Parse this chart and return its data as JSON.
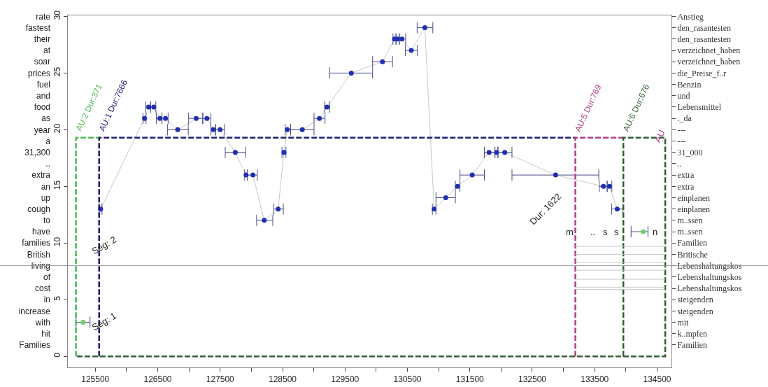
{
  "chart_data": {
    "type": "scatter",
    "xlim": [
      125060,
      134730
    ],
    "xticks": [
      125500,
      {
        "value": 126000,
        "label": null
      },
      126500,
      {
        "value": 127000,
        "label": null
      },
      127500,
      {
        "value": 128000,
        "label": null
      },
      128500,
      {
        "value": 129000,
        "label": null
      },
      129500,
      {
        "value": 130000,
        "label": null
      },
      130500,
      {
        "value": 131000,
        "label": null
      },
      131500,
      {
        "value": 132000,
        "label": null
      },
      132500,
      {
        "value": 133000,
        "label": null
      },
      133500,
      {
        "value": 134000,
        "label": null
      },
      134500
    ],
    "ylim": [
      -1,
      30.1
    ],
    "yticks": [
      0,
      5,
      10,
      15,
      20,
      25,
      30
    ],
    "y2_categories": [
      "Anstieg",
      "den_rasantesten",
      "den_rasantesten",
      "verzeichnet_haben",
      "verzeichnet_haben",
      "die_Preise_f..r",
      "Benzin",
      "und",
      "Lebensmittel",
      "._da",
      "---",
      "---",
      "31_000",
      "..",
      "extra",
      "extra",
      "einplanen",
      "einplanen",
      "m..ssen",
      "m..ssen",
      "Familien",
      "Britische",
      "Lebenshaltungskos",
      "Lebenshaltungskos",
      "Lebenshaltungskos",
      "steigenden",
      "steigenden",
      "mit",
      "k..mpfen",
      "Familien"
    ],
    "y_categories": [
      "rate",
      "fastest",
      "their",
      "at",
      "soar",
      "prices",
      "fuel",
      "and",
      "food",
      "as",
      "year",
      "a",
      "31,300",
      "..",
      "extra",
      "an",
      "up",
      "cough",
      "to",
      "have",
      "families",
      "British",
      "living",
      "of",
      "cost",
      "in",
      "increase",
      "with",
      "hit",
      "Families"
    ],
    "legend": false,
    "series": [
      {
        "type": "line",
        "color": "#c8c8c8",
        "line_style": "solid",
        "x": [
          125585,
          126288,
          126354,
          126436,
          126534,
          126624,
          126820,
          127116,
          127288,
          127390,
          127499,
          127743,
          127914,
          128025,
          128207,
          128429,
          128522,
          128576,
          128816,
          129090,
          129211,
          129601,
          130100,
          130293,
          130343,
          130412,
          130562,
          130779,
          130928,
          131114,
          131302,
          131538,
          131808,
          131926,
          132059,
          132874,
          133640,
          133737,
          133861
        ],
        "values": [
          13,
          21,
          22,
          22,
          21,
          21,
          20,
          21,
          21,
          20,
          20,
          18,
          16,
          16,
          12,
          13,
          18,
          20,
          20,
          21,
          22,
          25,
          26,
          28,
          28,
          28,
          27,
          29,
          13,
          14,
          15,
          16,
          18,
          18,
          18,
          16,
          15,
          15,
          13
        ]
      },
      {
        "color": "#1f2fb0",
        "marker": "circle",
        "x": [
          125585,
          126288,
          126354,
          126436,
          126534,
          126624,
          126820,
          127116,
          127288,
          127390,
          127499,
          127743,
          127914,
          128025,
          128207,
          128429,
          128522,
          128576,
          128816,
          129090,
          129211,
          129601,
          130100,
          130293,
          130343,
          130412,
          130562,
          130779,
          130928,
          131114,
          131302,
          131538,
          131808,
          131926,
          132059,
          132874,
          133640,
          133737,
          133861
        ],
        "values": [
          13,
          21,
          22,
          22,
          21,
          21,
          20,
          21,
          21,
          20,
          20,
          18,
          16,
          16,
          12,
          13,
          18,
          20,
          20,
          21,
          22,
          25,
          26,
          28,
          28,
          28,
          27,
          29,
          13,
          14,
          15,
          16,
          18,
          18,
          18,
          16,
          15,
          15,
          13
        ],
        "xerrors": [
          [
            125562,
            125607
          ],
          [
            126263,
            126313
          ],
          [
            126309,
            126387
          ],
          [
            126387,
            126470
          ],
          [
            126477,
            126568
          ],
          [
            126568,
            126666
          ],
          [
            126658,
            126989
          ],
          [
            126995,
            127221
          ],
          [
            127221,
            127352
          ],
          [
            127352,
            127428
          ],
          [
            127428,
            127570
          ],
          [
            127581,
            127908
          ],
          [
            127893,
            127934
          ],
          [
            127934,
            128096
          ],
          [
            128084,
            128343
          ],
          [
            128358,
            128512
          ],
          [
            128490,
            128554
          ],
          [
            128543,
            128629
          ],
          [
            128629,
            129004
          ],
          [
            129004,
            129180
          ],
          [
            129173,
            129255
          ],
          [
            129255,
            129942
          ],
          [
            129942,
            130261
          ],
          [
            130269,
            130317
          ],
          [
            130317,
            130370
          ],
          [
            130370,
            130471
          ],
          [
            130468,
            130659
          ],
          [
            130655,
            130907
          ],
          [
            130900,
            130957
          ],
          [
            130957,
            131268
          ],
          [
            131268,
            131342
          ],
          [
            131342,
            131733
          ],
          [
            131733,
            131902
          ],
          [
            131902,
            131950
          ],
          [
            131950,
            132175
          ],
          [
            132175,
            133565
          ],
          [
            133572,
            133700
          ],
          [
            133700,
            133775
          ],
          [
            133771,
            133951
          ]
        ]
      },
      {
        "color": "#6fcf6f",
        "marker": "circle",
        "x": [
          125306,
          134278
        ],
        "values": [
          3,
          11
        ],
        "xerrors": [
          [
            125190,
            125416
          ],
          [
            134083,
            134353
          ]
        ]
      },
      {
        "type": "line",
        "name": "AU:2 Dur:371",
        "color": "#4cbb4c",
        "line_style": "dashed",
        "x": [
          125190,
          125190,
          125561
        ],
        "values": [
          0,
          19.3,
          19.3
        ]
      },
      {
        "type": "line",
        "name": "AU:1 Dur:7666",
        "color": "#1c1c70",
        "line_style": "dashed",
        "x": [
          125561,
          125561,
          133190
        ],
        "values": [
          0,
          19.3,
          19.3
        ]
      },
      {
        "type": "line",
        "name": "AU:5 Dur:769",
        "color": "#b03d86",
        "line_style": "dashed",
        "x": [
          133190,
          133190,
          133959
        ],
        "values": [
          0,
          19.3,
          19.3
        ]
      },
      {
        "type": "line",
        "name": "AU:6 Dur:676",
        "color": "#2e5f2e",
        "line_style": "dashed",
        "x": [
          133959,
          133959,
          134630,
          134630,
          125190
        ],
        "values": [
          0,
          19.3,
          19.3,
          0,
          0
        ]
      },
      {
        "type": "line",
        "color": "#c8c8c8",
        "line_style": "solid",
        "x": [
          133190,
          134630
        ],
        "values": [
          9.7,
          9.7
        ]
      },
      {
        "type": "line",
        "color": "#c8c8c8",
        "line_style": "solid",
        "x": [
          133190,
          134630
        ],
        "values": [
          9.0,
          9.0
        ]
      },
      {
        "type": "line",
        "color": "#c8c8c8",
        "line_style": "solid",
        "x": [
          133190,
          134630
        ],
        "values": [
          8.3,
          8.3
        ]
      },
      {
        "type": "line",
        "color": "#c8c8c8",
        "line_style": "solid",
        "x": [
          133190,
          134630
        ],
        "values": [
          7.6,
          7.6
        ]
      },
      {
        "type": "line",
        "color": "#c8c8c8",
        "line_style": "solid",
        "x": [
          133190,
          134630
        ],
        "values": [
          6.8,
          6.8
        ]
      },
      {
        "type": "line",
        "color": "#c8c8c8",
        "line_style": "solid",
        "x": [
          133190,
          134630
        ],
        "values": [
          6.1,
          6.1
        ]
      },
      {
        "type": "line",
        "color": "#c8c8c8",
        "line_style": "solid",
        "x": [
          133190,
          134630
        ],
        "values": [
          5.9,
          5.9
        ]
      }
    ],
    "ref_lines": [
      {
        "axis": "y",
        "value": 8,
        "color": "#999999"
      }
    ],
    "annotations": [
      "Seg: 2",
      "Seg: 1",
      "Dur: 1622",
      "AU",
      "m",
      "..",
      "s",
      "s",
      "n"
    ]
  }
}
